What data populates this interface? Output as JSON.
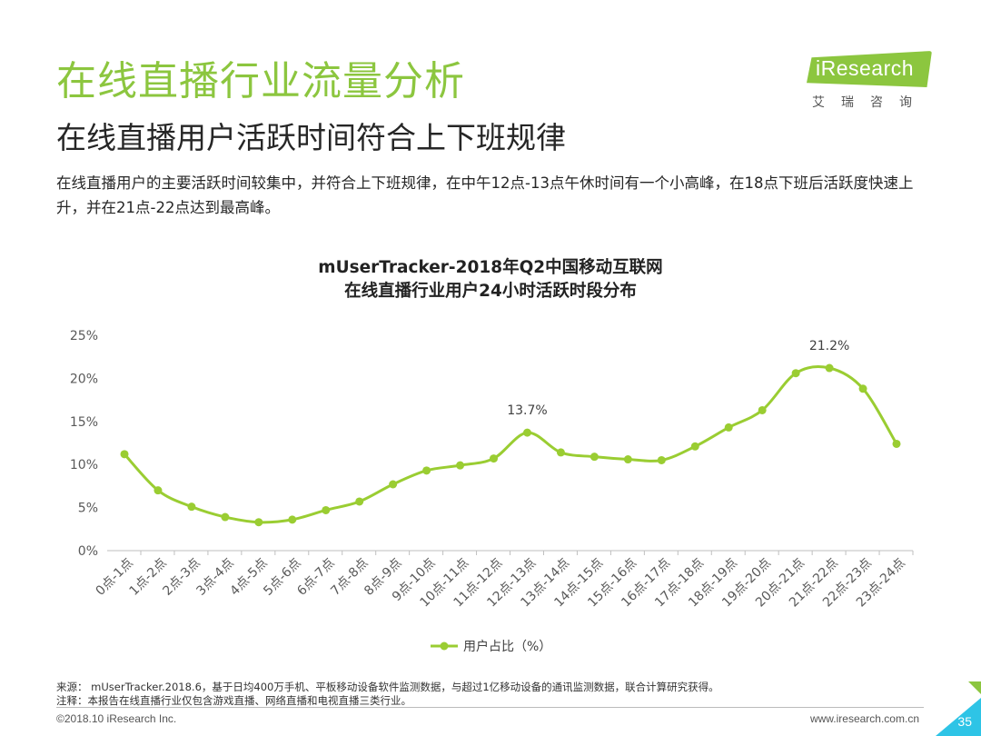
{
  "header": {
    "title": "在线直播行业流量分析",
    "subtitle": "在线直播用户活跃时间符合上下班规律",
    "description": "在线直播用户的主要活跃时间较集中，并符合上下班规律，在中午12点-13点午休时间有一个小高峰，在18点下班后活跃度快速上升，并在21点-22点达到最高峰。"
  },
  "logo": {
    "text": "iResearch",
    "cn": "艾瑞咨询",
    "icon": "iresearch-logo"
  },
  "colors": {
    "accent": "#8cc63f",
    "line": "#9acd32",
    "corner": "#2ec4e6"
  },
  "chart_data": {
    "type": "line",
    "title_line1": "mUserTracker-2018年Q2中国移动互联网",
    "title_line2": "在线直播行业用户24小时活跃时段分布",
    "categories": [
      "0点-1点",
      "1点-2点",
      "2点-3点",
      "3点-4点",
      "4点-5点",
      "5点-6点",
      "6点-7点",
      "7点-8点",
      "8点-9点",
      "9点-10点",
      "10点-11点",
      "11点-12点",
      "12点-13点",
      "13点-14点",
      "14点-15点",
      "15点-16点",
      "16点-17点",
      "17点-18点",
      "18点-19点",
      "19点-20点",
      "20点-21点",
      "21点-22点",
      "22点-23点",
      "23点-24点"
    ],
    "series": [
      {
        "name": "用户占比（%）",
        "values": [
          11.2,
          7.0,
          5.1,
          3.9,
          3.3,
          3.6,
          4.7,
          5.7,
          7.7,
          9.3,
          9.9,
          10.7,
          13.7,
          11.4,
          10.9,
          10.6,
          10.5,
          12.1,
          14.3,
          16.3,
          20.6,
          21.2,
          18.8,
          12.4
        ]
      }
    ],
    "annotations": [
      {
        "index": 12,
        "label": "13.7%"
      },
      {
        "index": 21,
        "label": "21.2%"
      }
    ],
    "yticks": [
      "0%",
      "5%",
      "10%",
      "15%",
      "20%",
      "25%"
    ],
    "ylim": [
      0,
      25
    ],
    "grid": false,
    "legend": "bottom"
  },
  "footer": {
    "source": "来源： mUserTracker.2018.6，基于日均400万手机、平板移动设备软件监测数据，与超过1亿移动设备的通讯监测数据，联合计算研究获得。",
    "note": "注释：本报告在线直播行业仅包含游戏直播、网络直播和电视直播三类行业。",
    "copyright": "©2018.10 iResearch Inc.",
    "url": "www.iresearch.com.cn",
    "page": "35"
  }
}
